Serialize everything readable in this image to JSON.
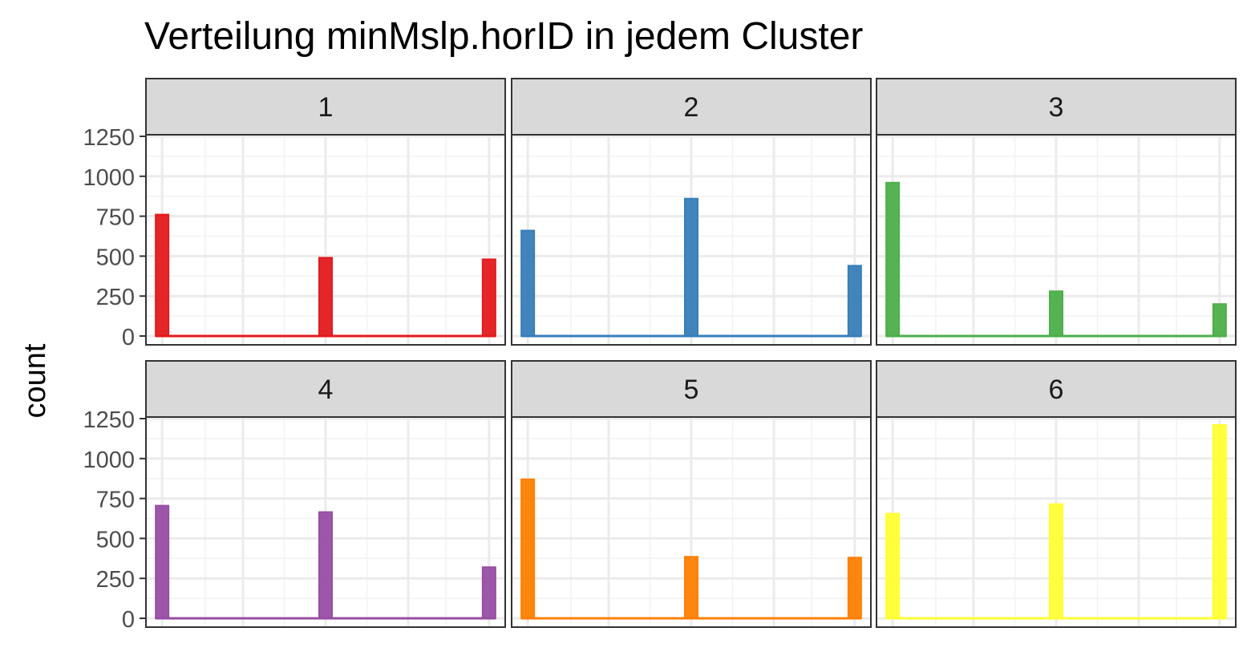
{
  "chart_data": {
    "type": "bar",
    "title": "Verteilung minMslp.horID in jedem Cluster",
    "xlabel": "",
    "ylabel": "count",
    "ylim": [
      0,
      1300
    ],
    "y_ticks": [
      0,
      250,
      500,
      750,
      1000,
      1250
    ],
    "grid": true,
    "legend": "none",
    "facets": [
      {
        "label": "1",
        "color": "#E41A1C",
        "values": [
          760,
          490,
          480
        ]
      },
      {
        "label": "2",
        "color": "#377EB8",
        "values": [
          660,
          860,
          440
        ]
      },
      {
        "label": "3",
        "color": "#4DAF4A",
        "values": [
          960,
          280,
          200
        ]
      },
      {
        "label": "4",
        "color": "#984EA3",
        "values": [
          705,
          665,
          320
        ]
      },
      {
        "label": "5",
        "color": "#FF7F00",
        "values": [
          870,
          385,
          380
        ]
      },
      {
        "label": "6",
        "color": "#FFFF33",
        "values": [
          655,
          715,
          1210
        ]
      }
    ]
  }
}
